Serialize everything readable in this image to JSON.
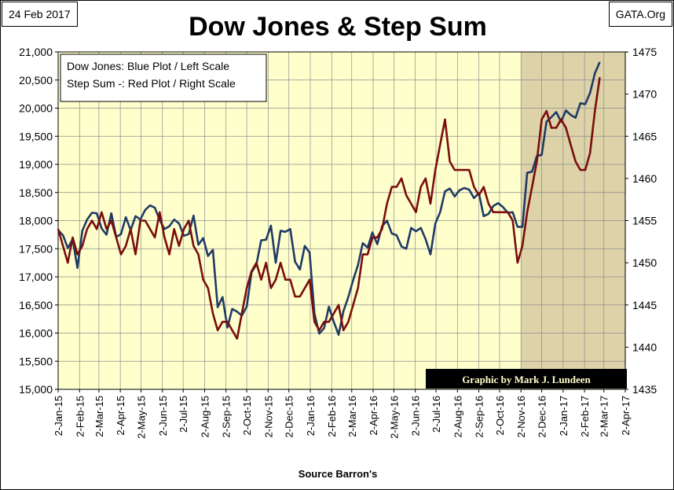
{
  "header": {
    "date": "24 Feb 2017",
    "source_tag": "GATA.Org",
    "title": "Dow Jones & Step Sum"
  },
  "footer": {
    "source": "Source Barron's"
  },
  "chart_data": {
    "type": "line",
    "title": "Dow Jones & Step Sum",
    "legend": {
      "lines": [
        "Dow Jones: Blue Plot / Left Scale",
        "Step Sum -: Red Plot / Right Scale"
      ],
      "placement": "top-left"
    },
    "credit": "Graphic by Mark J. Lundeen",
    "x_ticks": [
      "2-Jan-15",
      "2-Feb-15",
      "2-Mar-15",
      "2-Apr-15",
      "2-May-15",
      "2-Jun-15",
      "2-Jul-15",
      "2-Aug-15",
      "2-Sep-15",
      "2-Oct-15",
      "2-Nov-15",
      "2-Dec-15",
      "2-Jan-16",
      "2-Feb-16",
      "2-Mar-16",
      "2-Apr-16",
      "2-May-16",
      "2-Jun-16",
      "2-Jul-16",
      "2-Aug-16",
      "2-Sep-16",
      "2-Oct-16",
      "2-Nov-16",
      "2-Dec-16",
      "2-Jan-17",
      "2-Feb-17",
      "2-Mar-17",
      "2-Apr-17"
    ],
    "y_left": {
      "ticks": [
        "15,000",
        "15,500",
        "16,000",
        "16,500",
        "17,000",
        "17,500",
        "18,000",
        "18,500",
        "19,000",
        "19,500",
        "20,000",
        "20,500",
        "21,000"
      ],
      "range": [
        15000,
        21000
      ]
    },
    "y_right": {
      "ticks": [
        "1435",
        "1440",
        "1445",
        "1450",
        "1455",
        "1460",
        "1465",
        "1470",
        "1475"
      ],
      "range": [
        1435,
        1475
      ]
    },
    "plot_background": "#ffffcc",
    "shaded_region": {
      "from": "2-Nov-16",
      "to": "2-Apr-17",
      "color": "#ddd2a8"
    },
    "grid": true,
    "series": [
      {
        "name": "Dow Jones",
        "axis": "left",
        "color": "#1f3a66",
        "x": [
          "2-Jan-15",
          "9-Jan-15",
          "16-Jan-15",
          "23-Jan-15",
          "30-Jan-15",
          "6-Feb-15",
          "13-Feb-15",
          "20-Feb-15",
          "27-Feb-15",
          "6-Mar-15",
          "13-Mar-15",
          "20-Mar-15",
          "27-Mar-15",
          "3-Apr-15",
          "10-Apr-15",
          "17-Apr-15",
          "24-Apr-15",
          "1-May-15",
          "8-May-15",
          "15-May-15",
          "22-May-15",
          "29-May-15",
          "5-Jun-15",
          "12-Jun-15",
          "19-Jun-15",
          "26-Jun-15",
          "3-Jul-15",
          "10-Jul-15",
          "17-Jul-15",
          "24-Jul-15",
          "31-Jul-15",
          "7-Aug-15",
          "14-Aug-15",
          "21-Aug-15",
          "28-Aug-15",
          "4-Sep-15",
          "11-Sep-15",
          "18-Sep-15",
          "25-Sep-15",
          "2-Oct-15",
          "9-Oct-15",
          "16-Oct-15",
          "23-Oct-15",
          "30-Oct-15",
          "6-Nov-15",
          "13-Nov-15",
          "20-Nov-15",
          "27-Nov-15",
          "4-Dec-15",
          "11-Dec-15",
          "18-Dec-15",
          "25-Dec-15",
          "1-Jan-16",
          "8-Jan-16",
          "15-Jan-16",
          "22-Jan-16",
          "29-Jan-16",
          "5-Feb-16",
          "12-Feb-16",
          "19-Feb-16",
          "26-Feb-16",
          "4-Mar-16",
          "11-Mar-16",
          "18-Mar-16",
          "25-Mar-16",
          "1-Apr-16",
          "8-Apr-16",
          "15-Apr-16",
          "22-Apr-16",
          "29-Apr-16",
          "6-May-16",
          "13-May-16",
          "20-May-16",
          "27-May-16",
          "3-Jun-16",
          "10-Jun-16",
          "17-Jun-16",
          "24-Jun-16",
          "1-Jul-16",
          "8-Jul-16",
          "15-Jul-16",
          "22-Jul-16",
          "29-Jul-16",
          "5-Aug-16",
          "12-Aug-16",
          "19-Aug-16",
          "26-Aug-16",
          "2-Sep-16",
          "9-Sep-16",
          "16-Sep-16",
          "23-Sep-16",
          "30-Sep-16",
          "7-Oct-16",
          "14-Oct-16",
          "21-Oct-16",
          "28-Oct-16",
          "4-Nov-16",
          "11-Nov-16",
          "18-Nov-16",
          "25-Nov-16",
          "2-Dec-16",
          "9-Dec-16",
          "16-Dec-16",
          "23-Dec-16",
          "30-Dec-16",
          "6-Jan-17",
          "13-Jan-17",
          "20-Jan-17",
          "27-Jan-17",
          "3-Feb-17",
          "10-Feb-17",
          "17-Feb-17",
          "24-Feb-17"
        ],
        "values": [
          17830,
          17740,
          17510,
          17670,
          17160,
          17820,
          18020,
          18140,
          18130,
          17860,
          17750,
          18130,
          17710,
          17760,
          18060,
          17830,
          18080,
          18020,
          18190,
          18270,
          18230,
          18010,
          17850,
          17900,
          18020,
          17950,
          17730,
          17760,
          18090,
          17570,
          17690,
          17370,
          17480,
          16460,
          16640,
          16100,
          16430,
          16380,
          16310,
          16470,
          17080,
          17220,
          17650,
          17660,
          17910,
          17250,
          17820,
          17800,
          17850,
          17270,
          17130,
          17550,
          17430,
          16350,
          15990,
          16090,
          16470,
          16200,
          15970,
          16390,
          16640,
          16940,
          17210,
          17600,
          17520,
          17790,
          17580,
          17900,
          18000,
          17770,
          17740,
          17540,
          17500,
          17870,
          17810,
          17870,
          17670,
          17400,
          17950,
          18150,
          18520,
          18570,
          18430,
          18540,
          18580,
          18550,
          18400,
          18490,
          18080,
          18120,
          18260,
          18310,
          18240,
          18140,
          18150,
          17890,
          17890,
          18850,
          18870,
          19150,
          19170,
          19760,
          19840,
          19930,
          19760,
          19960,
          19880,
          19830,
          20090,
          20070,
          20270,
          20620,
          20820
        ]
      },
      {
        "name": "Step Sum -",
        "axis": "right",
        "color": "#7a0d0d",
        "x": [
          "2-Jan-15",
          "9-Jan-15",
          "16-Jan-15",
          "23-Jan-15",
          "30-Jan-15",
          "6-Feb-15",
          "13-Feb-15",
          "20-Feb-15",
          "27-Feb-15",
          "6-Mar-15",
          "13-Mar-15",
          "20-Mar-15",
          "27-Mar-15",
          "3-Apr-15",
          "10-Apr-15",
          "17-Apr-15",
          "24-Apr-15",
          "1-May-15",
          "8-May-15",
          "15-May-15",
          "22-May-15",
          "29-May-15",
          "5-Jun-15",
          "12-Jun-15",
          "19-Jun-15",
          "26-Jun-15",
          "3-Jul-15",
          "10-Jul-15",
          "17-Jul-15",
          "24-Jul-15",
          "31-Jul-15",
          "7-Aug-15",
          "14-Aug-15",
          "21-Aug-15",
          "28-Aug-15",
          "4-Sep-15",
          "11-Sep-15",
          "18-Sep-15",
          "25-Sep-15",
          "2-Oct-15",
          "9-Oct-15",
          "16-Oct-15",
          "23-Oct-15",
          "30-Oct-15",
          "6-Nov-15",
          "13-Nov-15",
          "20-Nov-15",
          "27-Nov-15",
          "4-Dec-15",
          "11-Dec-15",
          "18-Dec-15",
          "25-Dec-15",
          "1-Jan-16",
          "8-Jan-16",
          "15-Jan-16",
          "22-Jan-16",
          "29-Jan-16",
          "5-Feb-16",
          "12-Feb-16",
          "19-Feb-16",
          "26-Feb-16",
          "4-Mar-16",
          "11-Mar-16",
          "18-Mar-16",
          "25-Mar-16",
          "1-Apr-16",
          "8-Apr-16",
          "15-Apr-16",
          "22-Apr-16",
          "29-Apr-16",
          "6-May-16",
          "13-May-16",
          "20-May-16",
          "27-May-16",
          "3-Jun-16",
          "10-Jun-16",
          "17-Jun-16",
          "24-Jun-16",
          "1-Jul-16",
          "8-Jul-16",
          "15-Jul-16",
          "22-Jul-16",
          "29-Jul-16",
          "5-Aug-16",
          "12-Aug-16",
          "19-Aug-16",
          "26-Aug-16",
          "2-Sep-16",
          "9-Sep-16",
          "16-Sep-16",
          "23-Sep-16",
          "30-Sep-16",
          "7-Oct-16",
          "14-Oct-16",
          "21-Oct-16",
          "28-Oct-16",
          "4-Nov-16",
          "11-Nov-16",
          "18-Nov-16",
          "25-Nov-16",
          "2-Dec-16",
          "9-Dec-16",
          "16-Dec-16",
          "23-Dec-16",
          "30-Dec-16",
          "6-Jan-17",
          "13-Jan-17",
          "20-Jan-17",
          "27-Jan-17",
          "3-Feb-17",
          "10-Feb-17",
          "17-Feb-17",
          "24-Feb-17"
        ],
        "values": [
          1454,
          1452,
          1450,
          1453,
          1451,
          1452,
          1454,
          1455,
          1454,
          1456,
          1454,
          1455,
          1453,
          1451,
          1452,
          1454,
          1451,
          1455,
          1455,
          1454,
          1453,
          1456,
          1453,
          1451,
          1454,
          1452,
          1454,
          1455,
          1452,
          1451,
          1448,
          1447,
          1444,
          1442,
          1443,
          1443,
          1442,
          1441,
          1444,
          1447,
          1449,
          1450,
          1448,
          1450,
          1447,
          1448,
          1450,
          1448,
          1448,
          1446,
          1446,
          1447,
          1448,
          1443,
          1442,
          1443,
          1443,
          1444,
          1445,
          1442,
          1443,
          1445,
          1447,
          1451,
          1451,
          1453,
          1453,
          1454,
          1457,
          1459,
          1459,
          1460,
          1458,
          1457,
          1456,
          1459,
          1460,
          1457,
          1461,
          1464,
          1467,
          1462,
          1461,
          1461,
          1461,
          1461,
          1459,
          1458,
          1459,
          1457,
          1456,
          1456,
          1456,
          1456,
          1455,
          1450,
          1452,
          1456,
          1459,
          1462,
          1467,
          1468,
          1466,
          1466,
          1467,
          1466,
          1464,
          1462,
          1461,
          1461,
          1463,
          1468,
          1472
        ]
      }
    ]
  }
}
